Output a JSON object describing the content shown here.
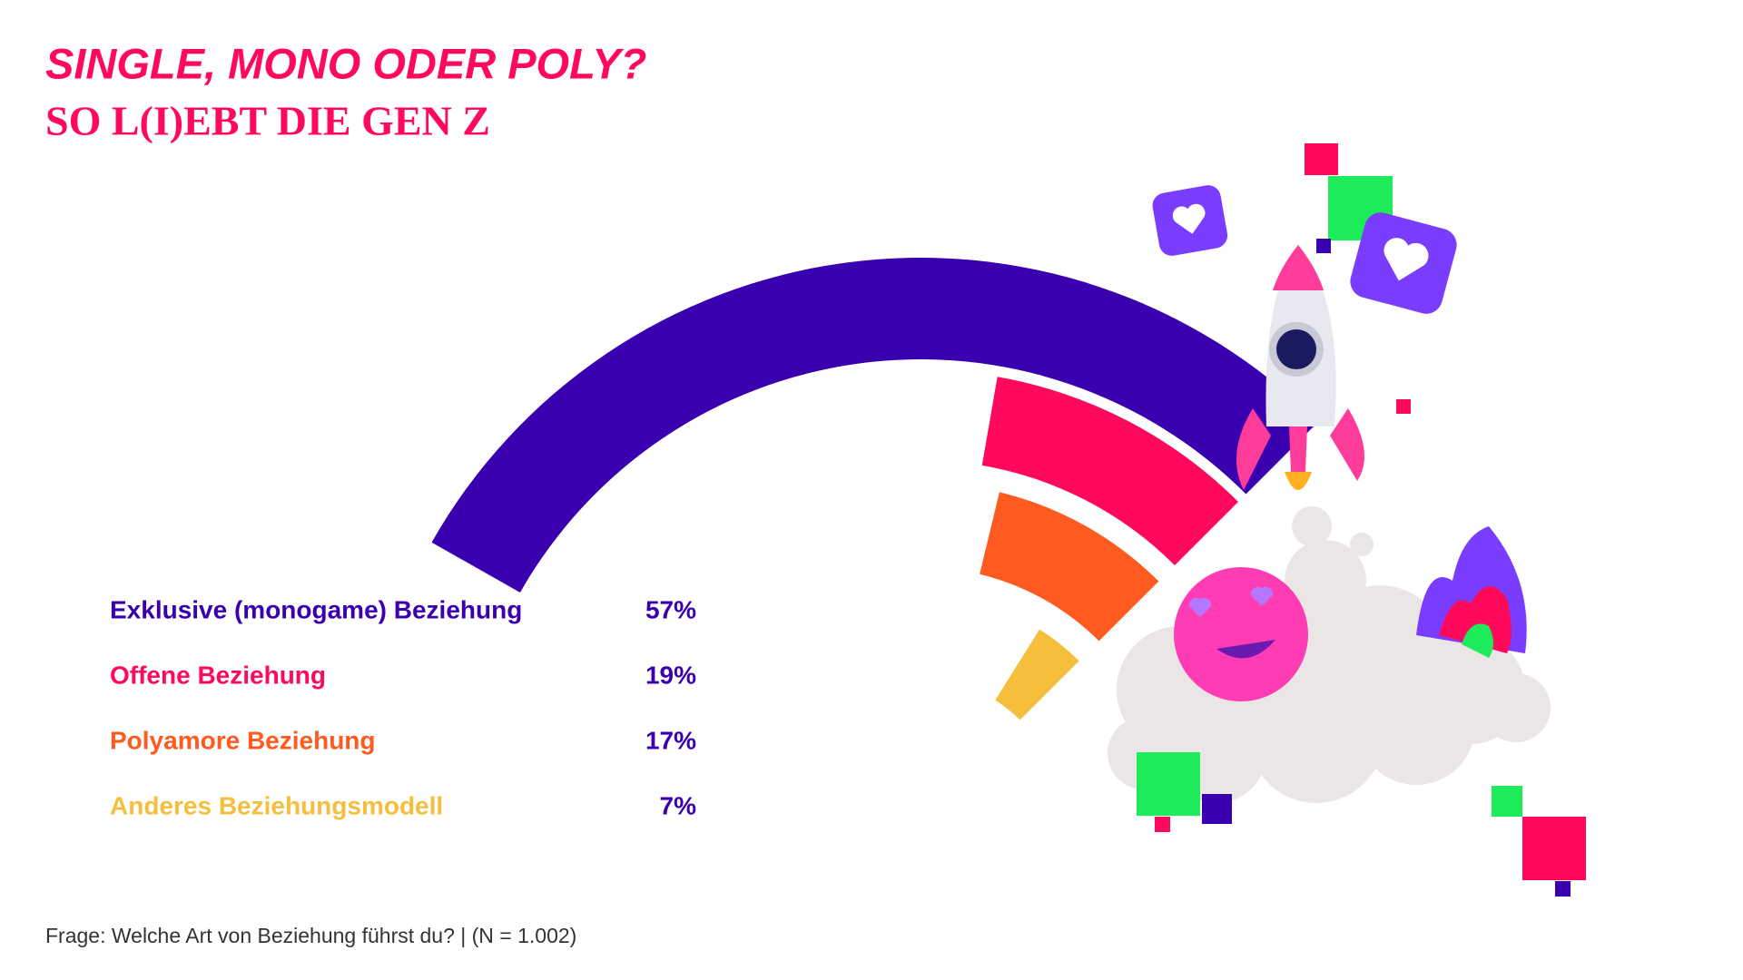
{
  "chart_data": {
    "type": "radial_bar",
    "title": "SINGLE, MONO ODER POLY?",
    "subtitle": "SO L(I)EBT DIE GEN Z",
    "footnote": "Frage: Welche Art von Beziehung führst du? | (N = 1.002)",
    "categories": [
      "Exklusive (monogame) Beziehung",
      "Offene Beziehung",
      "Polyamore Beziehung",
      "Anderes Beziehungsmodell"
    ],
    "values": [
      57,
      19,
      17,
      7
    ],
    "value_labels": [
      "57%",
      "19%",
      "17%",
      "7%"
    ],
    "colors": [
      "#3a00b0",
      "#ff0a5a",
      "#ff5a1f",
      "#f5be3c"
    ],
    "value_label_color": "#3a00b0",
    "title_color": "#ff0a5a"
  }
}
